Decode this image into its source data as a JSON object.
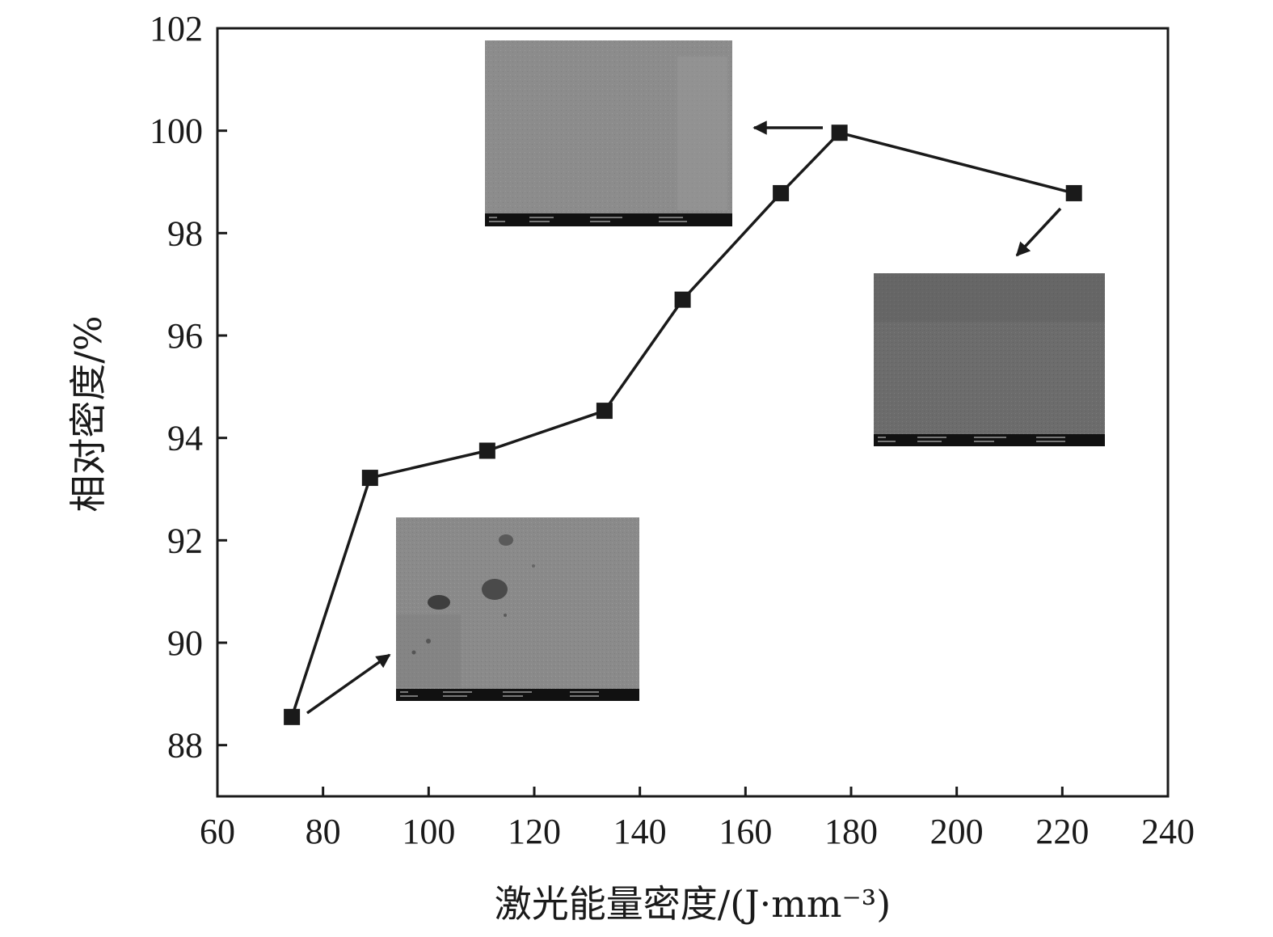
{
  "chart_data": {
    "type": "line",
    "xlabel": "激光能量密度/(J·mm⁻³)",
    "ylabel": "相对密度/%",
    "xlim": [
      60,
      240
    ],
    "ylim": [
      87,
      102
    ],
    "xticks": [
      60,
      80,
      100,
      120,
      140,
      160,
      180,
      200,
      220,
      240
    ],
    "yticks": [
      88,
      90,
      92,
      94,
      96,
      98,
      100,
      102
    ],
    "grid": false,
    "series": [
      {
        "marker": "square",
        "x": [
          74.1,
          88.9,
          111.1,
          133.3,
          148.1,
          166.7,
          177.8,
          222.2
        ],
        "y": [
          88.55,
          93.22,
          93.75,
          94.53,
          96.7,
          98.78,
          99.96,
          98.78
        ]
      }
    ],
    "insets": [
      {
        "name": "sem-image-low-energy",
        "points_to": [
          74.1,
          88.55
        ]
      },
      {
        "name": "sem-image-optimal-energy",
        "points_to": [
          177.8,
          99.96
        ]
      },
      {
        "name": "sem-image-high-energy",
        "points_to": [
          222.2,
          98.78
        ]
      }
    ]
  }
}
